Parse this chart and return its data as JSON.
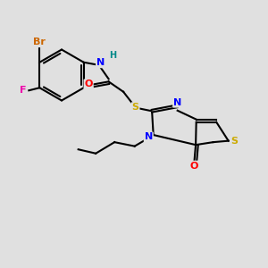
{
  "background_color": "#e0e0e0",
  "bond_color": "#000000",
  "atom_colors": {
    "Br": "#cc6600",
    "F": "#ee00aa",
    "N": "#0000ff",
    "O": "#ff0000",
    "S": "#ccaa00",
    "H": "#008888",
    "C": "#000000"
  },
  "bond_lw": 1.5,
  "font_size": 8
}
